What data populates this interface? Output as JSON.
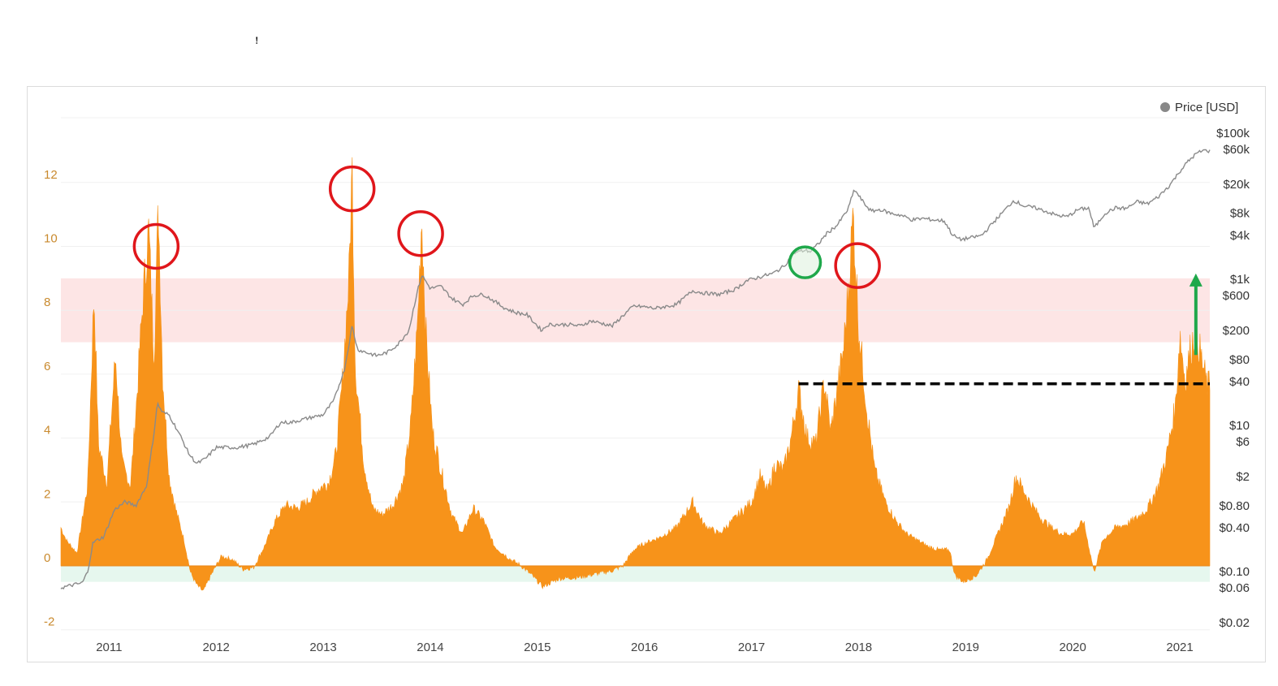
{
  "header": {
    "stray_mark": "ꜝ"
  },
  "chart_data": {
    "type": "area",
    "legend": {
      "label": "Price [USD]",
      "color": "#888888",
      "placement": "top-right"
    },
    "x_axis": {
      "labels": [
        "2011",
        "2012",
        "2013",
        "2014",
        "2015",
        "2016",
        "2017",
        "2018",
        "2019",
        "2020",
        "2021"
      ],
      "range": [
        2010.55,
        2021.28
      ]
    },
    "y_left": {
      "ticks": [
        "12",
        "10",
        "8",
        "6",
        "4",
        "2",
        "0",
        "-2"
      ],
      "values": [
        12,
        10,
        8,
        6,
        4,
        2,
        0,
        -2
      ],
      "range": [
        -2.2,
        14
      ]
    },
    "y_right": {
      "scale": "log",
      "ticks": [
        "$100k",
        "$60k",
        "$20k",
        "$8k",
        "$4k",
        "$1k",
        "$600",
        "$200",
        "$80",
        "$40",
        "$10",
        "$6",
        "$2",
        "$0.80",
        "$0.40",
        "$0.10",
        "$0.06",
        "$0.02"
      ],
      "values": [
        100000,
        60000,
        20000,
        8000,
        4000,
        1000,
        600,
        200,
        80,
        40,
        10,
        6,
        2,
        0.8,
        0.4,
        0.1,
        0.06,
        0.02
      ]
    },
    "bands": [
      {
        "name": "",
        "from": 7,
        "to": 9,
        "color": "#fde5e5"
      },
      {
        "name": "",
        "from": -0.5,
        "to": 0,
        "color": "#e6f7ee"
      }
    ],
    "indicator": {
      "color": "#f7931a",
      "points": [
        [
          2010.55,
          1.2
        ],
        [
          2010.6,
          0.8
        ],
        [
          2010.7,
          0.4
        ],
        [
          2010.8,
          2.5
        ],
        [
          2010.86,
          8.6
        ],
        [
          2010.9,
          3.8
        ],
        [
          2010.98,
          2.6
        ],
        [
          2011.06,
          6.6
        ],
        [
          2011.12,
          3.2
        ],
        [
          2011.2,
          2.5
        ],
        [
          2011.26,
          5.3
        ],
        [
          2011.32,
          8.5
        ],
        [
          2011.37,
          10.5
        ],
        [
          2011.42,
          6.5
        ],
        [
          2011.46,
          11.3
        ],
        [
          2011.5,
          6.0
        ],
        [
          2011.56,
          2.8
        ],
        [
          2011.62,
          1.8
        ],
        [
          2011.7,
          0.8
        ],
        [
          2011.76,
          -0.2
        ],
        [
          2011.82,
          -0.6
        ],
        [
          2011.88,
          -0.8
        ],
        [
          2011.95,
          -0.3
        ],
        [
          2012.05,
          0.3
        ],
        [
          2012.15,
          0.2
        ],
        [
          2012.25,
          -0.1
        ],
        [
          2012.35,
          -0.05
        ],
        [
          2012.45,
          0.6
        ],
        [
          2012.55,
          1.4
        ],
        [
          2012.65,
          1.9
        ],
        [
          2012.75,
          1.8
        ],
        [
          2012.85,
          2.0
        ],
        [
          2012.95,
          2.4
        ],
        [
          2013.05,
          2.6
        ],
        [
          2013.12,
          3.5
        ],
        [
          2013.18,
          5.8
        ],
        [
          2013.24,
          9.0
        ],
        [
          2013.27,
          12.5
        ],
        [
          2013.3,
          6.2
        ],
        [
          2013.38,
          3.2
        ],
        [
          2013.46,
          1.8
        ],
        [
          2013.55,
          1.6
        ],
        [
          2013.65,
          1.9
        ],
        [
          2013.75,
          2.6
        ],
        [
          2013.82,
          4.5
        ],
        [
          2013.88,
          7.5
        ],
        [
          2013.92,
          11.0
        ],
        [
          2013.96,
          7.2
        ],
        [
          2014.02,
          4.2
        ],
        [
          2014.1,
          3.0
        ],
        [
          2014.2,
          1.6
        ],
        [
          2014.3,
          1.0
        ],
        [
          2014.4,
          1.8
        ],
        [
          2014.5,
          1.4
        ],
        [
          2014.6,
          0.6
        ],
        [
          2014.75,
          0.2
        ],
        [
          2014.85,
          0.0
        ],
        [
          2014.95,
          -0.3
        ],
        [
          2015.05,
          -0.65
        ],
        [
          2015.2,
          -0.4
        ],
        [
          2015.4,
          -0.35
        ],
        [
          2015.55,
          -0.25
        ],
        [
          2015.7,
          -0.15
        ],
        [
          2015.8,
          0.0
        ],
        [
          2015.9,
          0.5
        ],
        [
          2016.0,
          0.7
        ],
        [
          2016.15,
          0.9
        ],
        [
          2016.3,
          1.2
        ],
        [
          2016.45,
          2.0
        ],
        [
          2016.55,
          1.3
        ],
        [
          2016.7,
          1.0
        ],
        [
          2016.85,
          1.5
        ],
        [
          2017.0,
          2.0
        ],
        [
          2017.08,
          2.8
        ],
        [
          2017.15,
          2.3
        ],
        [
          2017.22,
          3.2
        ],
        [
          2017.3,
          3.0
        ],
        [
          2017.37,
          4.0
        ],
        [
          2017.44,
          5.5
        ],
        [
          2017.52,
          4.0
        ],
        [
          2017.6,
          3.8
        ],
        [
          2017.68,
          5.8
        ],
        [
          2017.74,
          4.2
        ],
        [
          2017.8,
          5.5
        ],
        [
          2017.86,
          6.8
        ],
        [
          2017.9,
          8.5
        ],
        [
          2017.95,
          11.0
        ],
        [
          2018.0,
          7.5
        ],
        [
          2018.08,
          4.8
        ],
        [
          2018.15,
          3.0
        ],
        [
          2018.25,
          2.0
        ],
        [
          2018.35,
          1.4
        ],
        [
          2018.45,
          1.0
        ],
        [
          2018.55,
          0.8
        ],
        [
          2018.65,
          0.6
        ],
        [
          2018.75,
          0.5
        ],
        [
          2018.85,
          0.5
        ],
        [
          2018.9,
          -0.3
        ],
        [
          2018.98,
          -0.5
        ],
        [
          2019.1,
          -0.3
        ],
        [
          2019.2,
          0.2
        ],
        [
          2019.3,
          1.0
        ],
        [
          2019.4,
          1.8
        ],
        [
          2019.47,
          2.8
        ],
        [
          2019.52,
          2.5
        ],
        [
          2019.6,
          2.0
        ],
        [
          2019.7,
          1.5
        ],
        [
          2019.8,
          1.2
        ],
        [
          2019.9,
          1.0
        ],
        [
          2020.0,
          1.0
        ],
        [
          2020.1,
          1.4
        ],
        [
          2020.2,
          -0.2
        ],
        [
          2020.28,
          0.8
        ],
        [
          2020.4,
          1.2
        ],
        [
          2020.5,
          1.3
        ],
        [
          2020.6,
          1.5
        ],
        [
          2020.7,
          1.8
        ],
        [
          2020.8,
          2.5
        ],
        [
          2020.88,
          3.5
        ],
        [
          2020.96,
          5.0
        ],
        [
          2021.0,
          7.3
        ],
        [
          2021.05,
          5.8
        ],
        [
          2021.1,
          6.8
        ],
        [
          2021.15,
          7.4
        ],
        [
          2021.2,
          6.5
        ],
        [
          2021.25,
          5.7
        ],
        [
          2021.28,
          5.6
        ]
      ]
    },
    "price": {
      "color": "#8a8a8a",
      "points": [
        [
          2010.55,
          0.06
        ],
        [
          2010.65,
          0.065
        ],
        [
          2010.75,
          0.07
        ],
        [
          2010.8,
          0.1
        ],
        [
          2010.85,
          0.25
        ],
        [
          2010.95,
          0.3
        ],
        [
          2011.05,
          0.7
        ],
        [
          2011.15,
          0.9
        ],
        [
          2011.25,
          0.8
        ],
        [
          2011.35,
          1.5
        ],
        [
          2011.42,
          8
        ],
        [
          2011.45,
          20
        ],
        [
          2011.5,
          15
        ],
        [
          2011.56,
          14
        ],
        [
          2011.65,
          8
        ],
        [
          2011.75,
          4
        ],
        [
          2011.82,
          3
        ],
        [
          2011.9,
          3.5
        ],
        [
          2012.0,
          5
        ],
        [
          2012.1,
          5
        ],
        [
          2012.2,
          5
        ],
        [
          2012.35,
          5.5
        ],
        [
          2012.5,
          7
        ],
        [
          2012.6,
          11
        ],
        [
          2012.7,
          11
        ],
        [
          2012.8,
          12
        ],
        [
          2012.9,
          13
        ],
        [
          2013.0,
          14
        ],
        [
          2013.1,
          22
        ],
        [
          2013.2,
          60
        ],
        [
          2013.27,
          230
        ],
        [
          2013.32,
          110
        ],
        [
          2013.4,
          100
        ],
        [
          2013.5,
          90
        ],
        [
          2013.6,
          100
        ],
        [
          2013.7,
          130
        ],
        [
          2013.8,
          200
        ],
        [
          2013.87,
          600
        ],
        [
          2013.92,
          1150
        ],
        [
          2014.0,
          750
        ],
        [
          2014.1,
          800
        ],
        [
          2014.2,
          550
        ],
        [
          2014.3,
          450
        ],
        [
          2014.4,
          600
        ],
        [
          2014.5,
          620
        ],
        [
          2014.6,
          500
        ],
        [
          2014.7,
          400
        ],
        [
          2014.8,
          350
        ],
        [
          2014.9,
          330
        ],
        [
          2015.04,
          200
        ],
        [
          2015.1,
          240
        ],
        [
          2015.3,
          240
        ],
        [
          2015.4,
          230
        ],
        [
          2015.5,
          270
        ],
        [
          2015.6,
          250
        ],
        [
          2015.7,
          230
        ],
        [
          2015.8,
          320
        ],
        [
          2015.9,
          430
        ],
        [
          2016.0,
          420
        ],
        [
          2016.1,
          400
        ],
        [
          2016.3,
          450
        ],
        [
          2016.45,
          700
        ],
        [
          2016.55,
          650
        ],
        [
          2016.7,
          620
        ],
        [
          2016.85,
          730
        ],
        [
          2016.95,
          950
        ],
        [
          2017.0,
          1000
        ],
        [
          2017.1,
          1100
        ],
        [
          2017.2,
          1200
        ],
        [
          2017.3,
          1500
        ],
        [
          2017.4,
          2300
        ],
        [
          2017.5,
          2500
        ],
        [
          2017.55,
          2400
        ],
        [
          2017.62,
          3000
        ],
        [
          2017.7,
          4200
        ],
        [
          2017.8,
          5500
        ],
        [
          2017.9,
          9000
        ],
        [
          2017.96,
          17000
        ],
        [
          2018.05,
          11000
        ],
        [
          2018.12,
          8500
        ],
        [
          2018.2,
          9000
        ],
        [
          2018.3,
          8000
        ],
        [
          2018.4,
          7500
        ],
        [
          2018.5,
          6500
        ],
        [
          2018.6,
          6800
        ],
        [
          2018.7,
          6500
        ],
        [
          2018.8,
          6300
        ],
        [
          2018.88,
          4000
        ],
        [
          2018.95,
          3500
        ],
        [
          2019.05,
          3700
        ],
        [
          2019.15,
          4000
        ],
        [
          2019.3,
          7000
        ],
        [
          2019.45,
          12000
        ],
        [
          2019.55,
          10000
        ],
        [
          2019.65,
          9500
        ],
        [
          2019.75,
          8500
        ],
        [
          2019.85,
          7500
        ],
        [
          2019.95,
          7200
        ],
        [
          2020.05,
          9000
        ],
        [
          2020.15,
          9500
        ],
        [
          2020.2,
          5000
        ],
        [
          2020.3,
          8000
        ],
        [
          2020.4,
          9500
        ],
        [
          2020.5,
          9300
        ],
        [
          2020.6,
          11500
        ],
        [
          2020.7,
          10800
        ],
        [
          2020.8,
          13500
        ],
        [
          2020.9,
          19000
        ],
        [
          2021.0,
          30000
        ],
        [
          2021.07,
          40000
        ],
        [
          2021.15,
          52000
        ],
        [
          2021.22,
          58000
        ],
        [
          2021.28,
          57000
        ]
      ]
    },
    "annotations": {
      "red_circles": [
        [
          2011.44,
          10.0
        ],
        [
          2013.27,
          11.8
        ],
        [
          2013.91,
          10.4
        ],
        [
          2017.99,
          9.4
        ]
      ],
      "green_circle": [
        2017.5,
        9.5
      ],
      "dashed_line": {
        "from": 2017.44,
        "to": 2021.28,
        "y": 5.7
      },
      "arrow": {
        "x": 2021.15,
        "from": 6.6,
        "to": 9.1
      }
    }
  }
}
